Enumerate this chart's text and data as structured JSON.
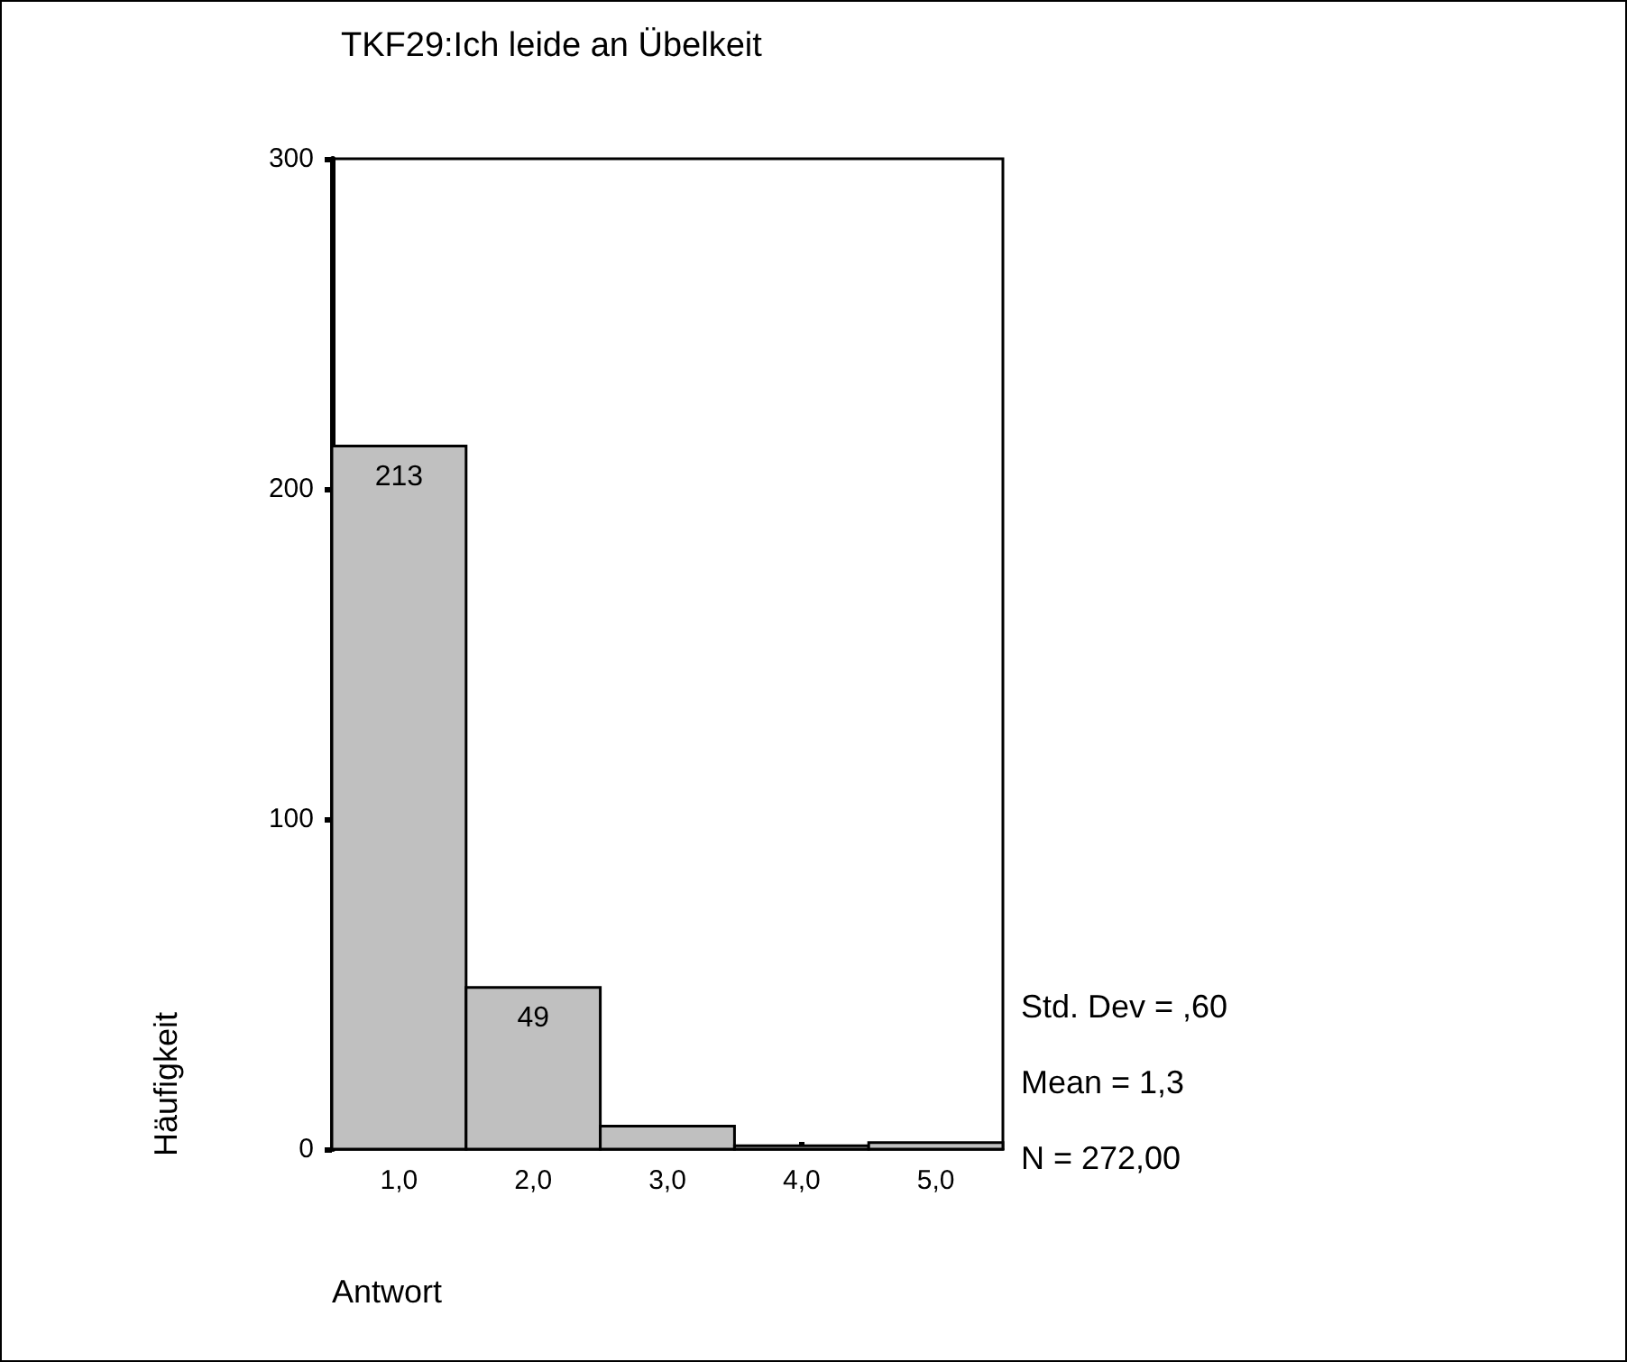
{
  "chart_data": {
    "type": "histogram",
    "title": "TKF29:Ich leide an Übelkeit",
    "xlabel": "Antwort",
    "ylabel": "Häufigkeit",
    "bins": [
      0.5,
      1.5,
      2.5,
      3.5,
      4.5,
      5.5
    ],
    "values": [
      213,
      49,
      7,
      1,
      2
    ],
    "value_labels": [
      "213",
      "49",
      null,
      null,
      null
    ],
    "color": "#c0c0c0",
    "xlim": [
      0.5,
      5.5
    ],
    "xticks": [
      {
        "value": 1,
        "label": "1,0"
      },
      {
        "value": 2,
        "label": "2,0"
      },
      {
        "value": 3,
        "label": "3,0"
      },
      {
        "value": 4,
        "label": "4,0"
      },
      {
        "value": 5,
        "label": "5,0"
      }
    ],
    "ylim": [
      0,
      300
    ],
    "yticks": [
      0,
      100,
      200,
      300
    ],
    "annotations": [
      "Std. Dev = ,60",
      "Mean = 1,3",
      "N = 272,00"
    ],
    "grid": false
  }
}
